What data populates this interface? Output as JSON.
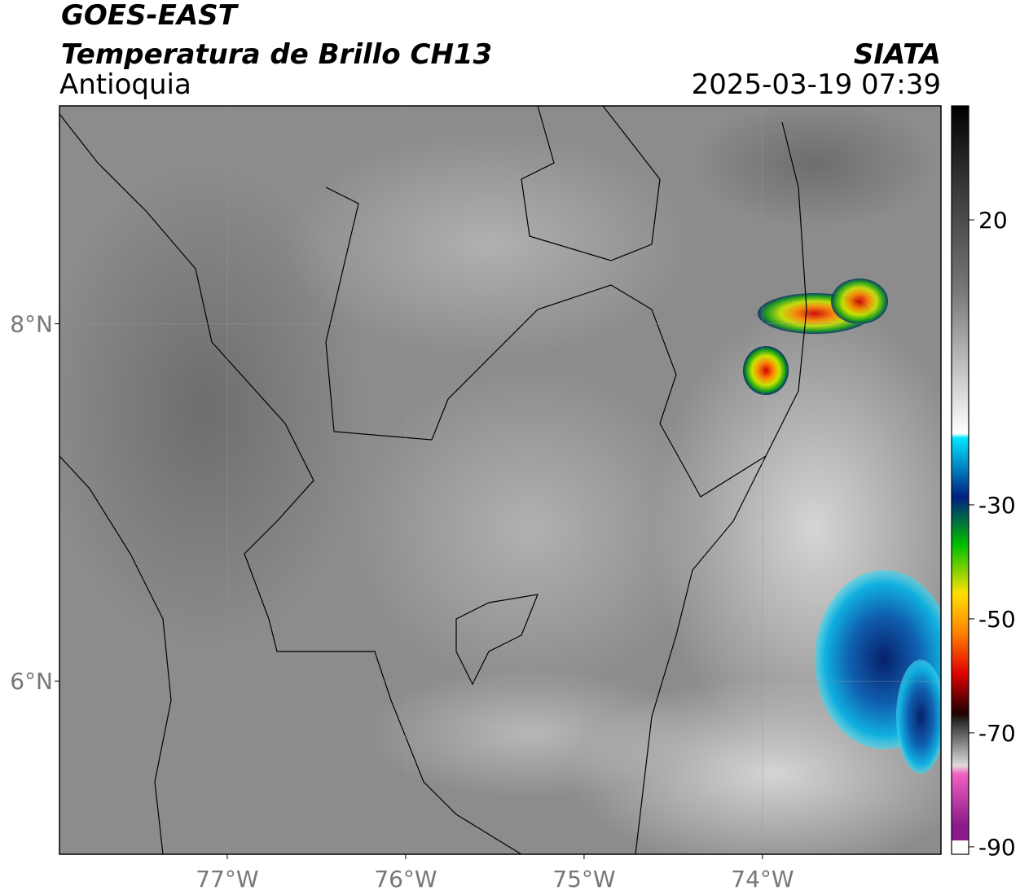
{
  "header": {
    "title": "GOES-EAST",
    "subtitle": "Temperatura de Brillo CH13",
    "region": "Antioquia",
    "source": "SIATA",
    "datetime": "2025-03-19 07:39"
  },
  "map": {
    "xlim": [
      -77.94,
      -73.0
    ],
    "ylim": [
      5.03,
      9.22
    ],
    "xticks": [
      {
        "value": -77,
        "label": "77°W"
      },
      {
        "value": -76,
        "label": "76°W"
      },
      {
        "value": -75,
        "label": "75°W"
      },
      {
        "value": -74,
        "label": "74°W"
      }
    ],
    "yticks": [
      {
        "value": 8,
        "label": "8°N"
      },
      {
        "value": 6,
        "label": "6°N"
      }
    ]
  },
  "colorbar": {
    "lim": [
      -91.3,
      40
    ],
    "ticks": [
      20,
      -30,
      -50,
      -70,
      -90
    ]
  }
}
